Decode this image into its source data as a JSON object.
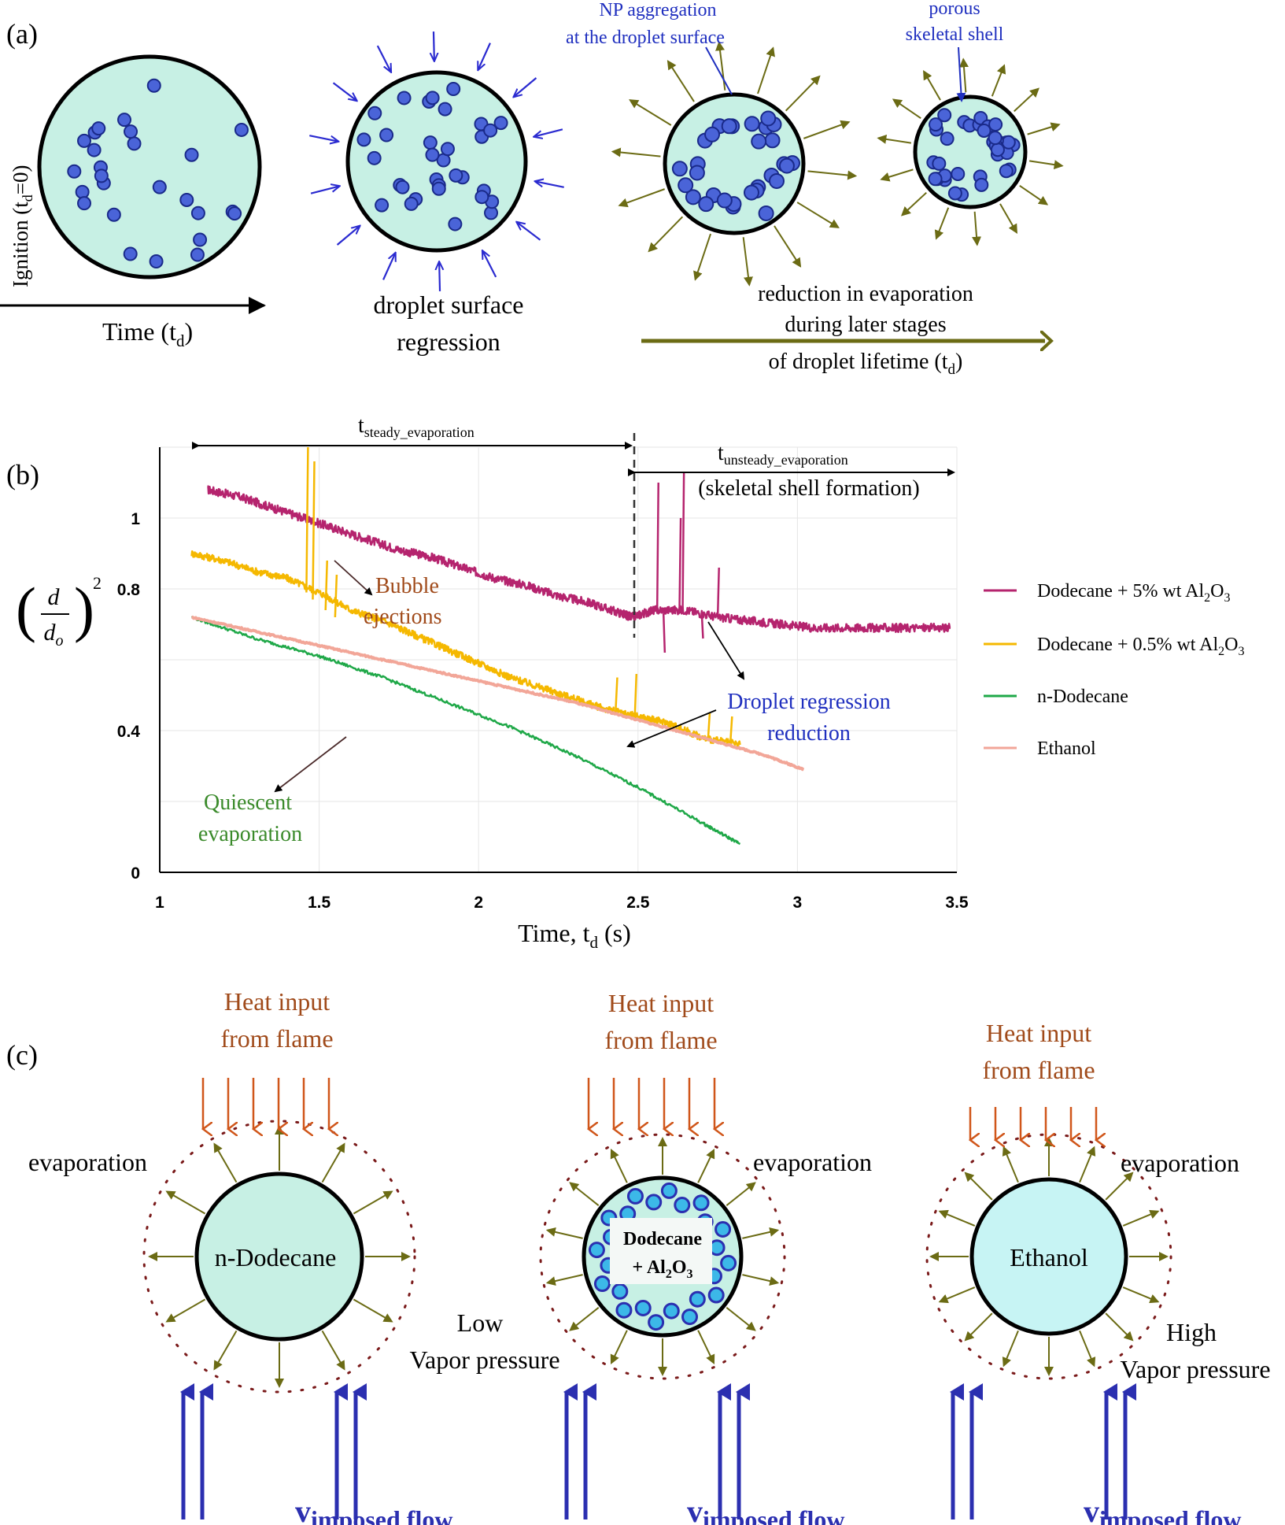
{
  "panel_a": {
    "label": "(a)",
    "ignition_label": "Ignition (t",
    "ignition_sub": "d",
    "ignition_tail": "=0)",
    "time_label": "Time (t",
    "time_sub": "d",
    "time_tail": ")",
    "regression_line1": "droplet surface",
    "regression_line2": "regression",
    "np_agg_line1": "NP aggregation",
    "np_agg_line2": "at the droplet surface",
    "porous_line1": "porous",
    "porous_line2": "skeletal shell",
    "reduction_line1": "reduction in evaporation",
    "reduction_line2": "during later stages",
    "reduction_line3": "of droplet lifetime (t",
    "reduction_sub": "d",
    "reduction_tail": ")"
  },
  "panel_b": {
    "label": "(b)",
    "steady_label": "t",
    "steady_sub": "steady_evaporation",
    "unsteady_label": "t",
    "unsteady_sub": "unsteady_evaporation",
    "skeletal_label": "(skeletal shell formation)",
    "bubble_line1": "Bubble",
    "bubble_line2": "ejections",
    "regression_line1": "Droplet regression",
    "regression_line2": "reduction",
    "quiescent_line1": "Quiescent",
    "quiescent_line2": "evaporation",
    "xlabel": "Time, t",
    "xlabel_sub": "d",
    "xlabel_tail": " (s)",
    "ylabel_num": "d",
    "ylabel_den": "d",
    "ylabel_den_sub": "o",
    "ylabel_exp": "2"
  },
  "chart_data": {
    "type": "line",
    "xlim": [
      1,
      3.5
    ],
    "ylim": [
      0,
      1.2
    ],
    "xticks": [
      "1",
      "1.5",
      "2",
      "2.5",
      "3",
      "3.5"
    ],
    "yticks": [
      "0",
      "0.4",
      "0.8",
      "1"
    ],
    "grid": true,
    "legend_position": "right",
    "series": [
      {
        "name": "Dodecane + 5% wt Al",
        "name_sub1": "2",
        "name_mid": "O",
        "name_sub2": "3",
        "color": "#b5246e",
        "x": [
          1.15,
          1.25,
          1.35,
          1.45,
          1.55,
          1.65,
          1.75,
          1.85,
          1.95,
          2.05,
          2.15,
          2.25,
          2.35,
          2.45,
          2.48,
          2.55,
          2.65,
          2.75,
          2.85,
          2.95,
          3.05,
          3.15,
          3.25,
          3.35,
          3.48
        ],
        "y": [
          1.08,
          1.06,
          1.03,
          1.0,
          0.97,
          0.94,
          0.91,
          0.89,
          0.86,
          0.83,
          0.81,
          0.78,
          0.76,
          0.73,
          0.72,
          0.74,
          0.74,
          0.72,
          0.71,
          0.7,
          0.69,
          0.69,
          0.69,
          0.69,
          0.69
        ]
      },
      {
        "name": "Dodecane + 0.5% wt Al",
        "name_sub1": "2",
        "name_mid": "O",
        "name_sub2": "3",
        "color": "#f5b800",
        "x": [
          1.1,
          1.2,
          1.3,
          1.4,
          1.5,
          1.6,
          1.7,
          1.8,
          1.9,
          2.0,
          2.1,
          2.2,
          2.3,
          2.4,
          2.5,
          2.6,
          2.7,
          2.82
        ],
        "y": [
          0.9,
          0.88,
          0.85,
          0.83,
          0.79,
          0.74,
          0.71,
          0.67,
          0.63,
          0.59,
          0.55,
          0.52,
          0.49,
          0.46,
          0.44,
          0.42,
          0.38,
          0.36
        ]
      },
      {
        "name": "n-Dodecane",
        "color": "#1fa848",
        "x": [
          1.1,
          1.3,
          1.5,
          1.7,
          1.9,
          2.1,
          2.3,
          2.5,
          2.7,
          2.82
        ],
        "y": [
          0.72,
          0.66,
          0.61,
          0.55,
          0.48,
          0.41,
          0.33,
          0.24,
          0.14,
          0.08
        ]
      },
      {
        "name": "Ethanol",
        "color": "#f2a698",
        "x": [
          1.1,
          1.3,
          1.5,
          1.7,
          1.9,
          2.1,
          2.3,
          2.5,
          2.7,
          2.9,
          3.02
        ],
        "y": [
          0.72,
          0.68,
          0.64,
          0.6,
          0.56,
          0.52,
          0.48,
          0.43,
          0.38,
          0.33,
          0.29
        ]
      }
    ]
  },
  "panel_c": {
    "label": "(c)",
    "heat_line1": "Heat input",
    "heat_line2": "from flame",
    "evaporation": "evaporation",
    "droplet1": "n-Dodecane",
    "droplet2_line1": "Dodecane",
    "droplet2_line2": "+ Al",
    "droplet2_sub1": "2",
    "droplet2_mid": "O",
    "droplet2_sub2": "3",
    "droplet3": "Ethanol",
    "low_line1": "Low",
    "low_line2": "Vapor pressure",
    "high_line1": "High",
    "high_line2": "Vapor pressure",
    "flow_v": "v",
    "flow_sub": "imposed flow"
  },
  "colors": {
    "droplet_fill": "#c7f0e4",
    "particle": "#4a64d8",
    "inward_arrow": "#2a2ad0",
    "olive": "#6b6b14",
    "heat_arrow": "#d0561a",
    "flow_arrow": "#2b2fb0",
    "label_blue": "#1f2fbf",
    "label_brown": "#a04a1a",
    "label_green": "#3a8a2a",
    "dotted_ring": "#7a1a1a"
  }
}
